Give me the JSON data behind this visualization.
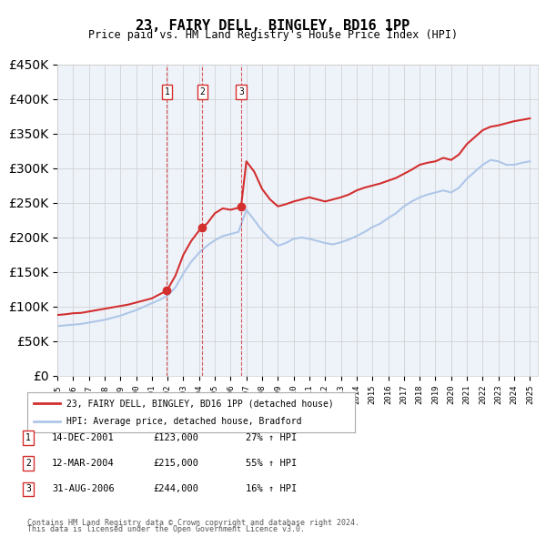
{
  "title": "23, FAIRY DELL, BINGLEY, BD16 1PP",
  "subtitle": "Price paid vs. HM Land Registry's House Price Index (HPI)",
  "legend_line1": "23, FAIRY DELL, BINGLEY, BD16 1PP (detached house)",
  "legend_line2": "HPI: Average price, detached house, Bradford",
  "footnote1": "Contains HM Land Registry data © Crown copyright and database right 2024.",
  "footnote2": "This data is licensed under the Open Government Licence v3.0.",
  "transactions": [
    {
      "num": 1,
      "date": "14-DEC-2001",
      "price": 123000,
      "hpi": "27% ↑ HPI",
      "x_year": 2001.96
    },
    {
      "num": 2,
      "date": "12-MAR-2004",
      "price": 215000,
      "hpi": "55% ↑ HPI",
      "x_year": 2004.21
    },
    {
      "num": 3,
      "date": "31-AUG-2006",
      "price": 244000,
      "hpi": "16% ↑ HPI",
      "x_year": 2006.66
    }
  ],
  "hpi_color": "#aec6e8",
  "price_color": "#d32f2f",
  "background_color": "#e8f0f8",
  "plot_bg": "#eef3fa",
  "ylim": [
    0,
    450000
  ],
  "xlim_start": 1995.0,
  "xlim_end": 2025.5,
  "red_line_data": {
    "years": [
      1995.0,
      1995.5,
      1996.0,
      1996.5,
      1997.0,
      1997.5,
      1998.0,
      1998.5,
      1999.0,
      1999.5,
      2000.0,
      2000.5,
      2001.0,
      2001.5,
      2001.96,
      2002.0,
      2002.5,
      2003.0,
      2003.5,
      2004.0,
      2004.21,
      2004.5,
      2005.0,
      2005.5,
      2006.0,
      2006.5,
      2006.66,
      2007.0,
      2007.5,
      2008.0,
      2008.5,
      2009.0,
      2009.5,
      2010.0,
      2010.5,
      2011.0,
      2011.5,
      2012.0,
      2012.5,
      2013.0,
      2013.5,
      2014.0,
      2014.5,
      2015.0,
      2015.5,
      2016.0,
      2016.5,
      2017.0,
      2017.5,
      2018.0,
      2018.5,
      2019.0,
      2019.5,
      2020.0,
      2020.5,
      2021.0,
      2021.5,
      2022.0,
      2022.5,
      2023.0,
      2023.5,
      2024.0,
      2024.5,
      2025.0
    ],
    "values": [
      88000,
      89000,
      90500,
      91000,
      93000,
      95000,
      97000,
      99000,
      101000,
      103000,
      106000,
      109000,
      112000,
      118000,
      123000,
      125000,
      145000,
      175000,
      195000,
      210000,
      215000,
      220000,
      235000,
      242000,
      240000,
      243000,
      244000,
      310000,
      295000,
      270000,
      255000,
      245000,
      248000,
      252000,
      255000,
      258000,
      255000,
      252000,
      255000,
      258000,
      262000,
      268000,
      272000,
      275000,
      278000,
      282000,
      286000,
      292000,
      298000,
      305000,
      308000,
      310000,
      315000,
      312000,
      320000,
      335000,
      345000,
      355000,
      360000,
      362000,
      365000,
      368000,
      370000,
      372000
    ]
  },
  "hpi_line_data": {
    "years": [
      1995.0,
      1995.5,
      1996.0,
      1996.5,
      1997.0,
      1997.5,
      1998.0,
      1998.5,
      1999.0,
      1999.5,
      2000.0,
      2000.5,
      2001.0,
      2001.5,
      2002.0,
      2002.5,
      2003.0,
      2003.5,
      2004.0,
      2004.5,
      2005.0,
      2005.5,
      2006.0,
      2006.5,
      2007.0,
      2007.5,
      2008.0,
      2008.5,
      2009.0,
      2009.5,
      2010.0,
      2010.5,
      2011.0,
      2011.5,
      2012.0,
      2012.5,
      2013.0,
      2013.5,
      2014.0,
      2014.5,
      2015.0,
      2015.5,
      2016.0,
      2016.5,
      2017.0,
      2017.5,
      2018.0,
      2018.5,
      2019.0,
      2019.5,
      2020.0,
      2020.5,
      2021.0,
      2021.5,
      2022.0,
      2022.5,
      2023.0,
      2023.5,
      2024.0,
      2024.5,
      2025.0
    ],
    "values": [
      72000,
      73000,
      74000,
      75000,
      77000,
      79000,
      81000,
      84000,
      87000,
      91000,
      95000,
      100000,
      105000,
      110000,
      116000,
      128000,
      148000,
      165000,
      178000,
      188000,
      196000,
      202000,
      205000,
      208000,
      240000,
      225000,
      210000,
      198000,
      188000,
      192000,
      198000,
      200000,
      198000,
      195000,
      192000,
      190000,
      193000,
      197000,
      202000,
      208000,
      215000,
      220000,
      228000,
      235000,
      245000,
      252000,
      258000,
      262000,
      265000,
      268000,
      265000,
      272000,
      285000,
      295000,
      305000,
      312000,
      310000,
      305000,
      305000,
      308000,
      310000
    ]
  }
}
